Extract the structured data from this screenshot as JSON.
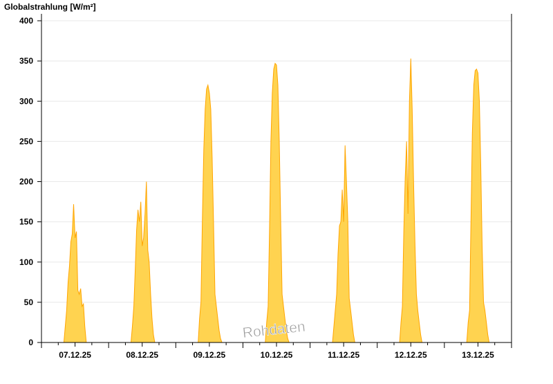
{
  "chart_data": {
    "type": "area",
    "title": "Globalstrahlung [W/m²]",
    "ylabel": "",
    "xlabel": "",
    "ylim": [
      0,
      400
    ],
    "yticks": [
      0,
      50,
      100,
      150,
      200,
      250,
      300,
      350,
      400
    ],
    "grid": "horizontal",
    "fill_color": "#ffd350",
    "line_color": "#ffa500",
    "watermark": "Rohdaten",
    "x_tick_labels": [
      "07.12.25",
      "08.12.25",
      "09.12.25",
      "10.12.25",
      "11.12.25",
      "12.12.25",
      "13.12.25"
    ],
    "sample_times_hours": [
      8,
      8.5,
      9,
      9.5,
      10,
      10.5,
      11,
      11.5,
      12,
      12.5,
      13,
      13.5,
      14,
      14.5,
      15,
      15.5,
      16,
      16.5
    ],
    "series": [
      {
        "date": "07.12.25",
        "values": [
          0,
          20,
          40,
          75,
          95,
          125,
          135,
          172,
          130,
          138,
          65,
          60,
          67,
          45,
          48,
          20,
          0,
          0
        ]
      },
      {
        "date": "08.12.25",
        "values": [
          0,
          20,
          45,
          90,
          140,
          165,
          150,
          175,
          120,
          130,
          160,
          200,
          115,
          100,
          60,
          30,
          10,
          0
        ]
      },
      {
        "date": "09.12.25",
        "values": [
          0,
          30,
          50,
          150,
          240,
          290,
          315,
          320,
          310,
          290,
          230,
          150,
          60,
          45,
          30,
          15,
          5,
          0
        ]
      },
      {
        "date": "10.12.25",
        "values": [
          0,
          25,
          45,
          140,
          250,
          310,
          340,
          347,
          345,
          320,
          250,
          150,
          60,
          45,
          30,
          15,
          5,
          0
        ]
      },
      {
        "date": "11.12.25",
        "values": [
          0,
          20,
          40,
          60,
          110,
          145,
          150,
          190,
          150,
          245,
          200,
          150,
          55,
          40,
          25,
          10,
          0,
          0
        ]
      },
      {
        "date": "12.12.25",
        "values": [
          0,
          25,
          45,
          140,
          205,
          250,
          160,
          300,
          353,
          290,
          200,
          120,
          60,
          40,
          25,
          10,
          0,
          0
        ]
      },
      {
        "date": "13.12.25",
        "values": [
          0,
          25,
          40,
          150,
          260,
          320,
          338,
          340,
          335,
          300,
          220,
          120,
          50,
          40,
          25,
          10,
          0,
          0
        ]
      }
    ]
  }
}
